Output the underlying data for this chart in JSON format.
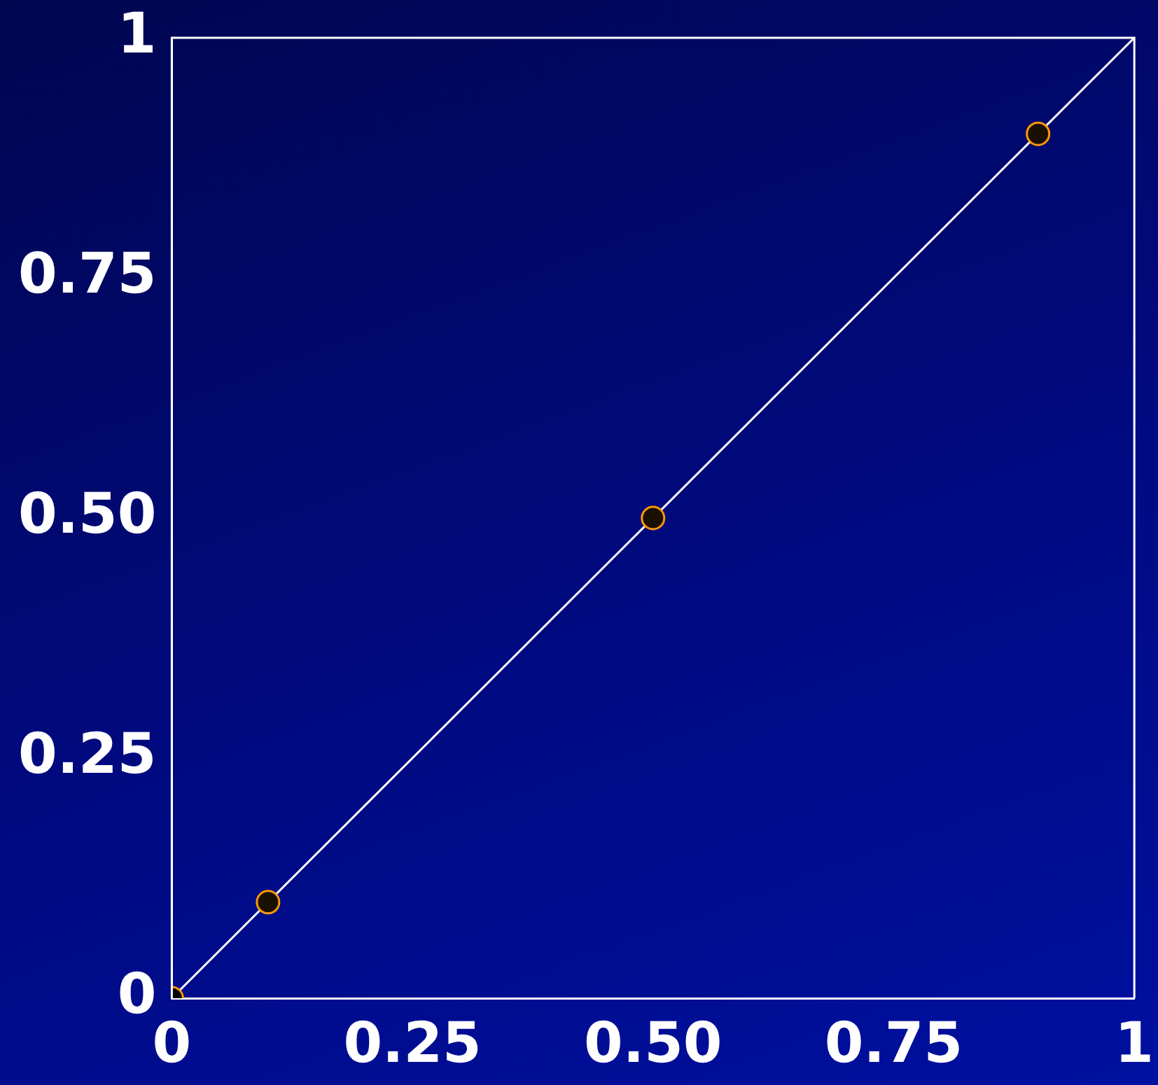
{
  "chart_data": {
    "type": "scatter",
    "xlim": [
      0,
      1
    ],
    "ylim": [
      0,
      1
    ],
    "xticks": [
      0,
      {
        "value": 0.25,
        "label": "0.25"
      },
      {
        "value": 0.5,
        "label": "0.50"
      },
      {
        "value": 0.75,
        "label": "0.75"
      },
      1
    ],
    "yticks": [
      0,
      {
        "value": 0.25,
        "label": "0.25"
      },
      {
        "value": 0.5,
        "label": "0.50"
      },
      {
        "value": 0.75,
        "label": "0.75"
      },
      1
    ],
    "grid": false,
    "series": [
      {
        "type": "line",
        "color": "#ffffff",
        "x": [
          0,
          1
        ],
        "values": [
          0,
          1
        ],
        "marker": "none",
        "line_style": "solid"
      },
      {
        "type": "scatter",
        "color": "#000000",
        "x": [
          0
        ],
        "values": [
          0
        ],
        "marker": "circle"
      },
      {
        "type": "scatter",
        "color": "#1a1000",
        "x": [
          0.1,
          0.5,
          0.9
        ],
        "values": [
          0.1,
          0.5,
          0.9
        ],
        "marker": "circle"
      }
    ]
  }
}
